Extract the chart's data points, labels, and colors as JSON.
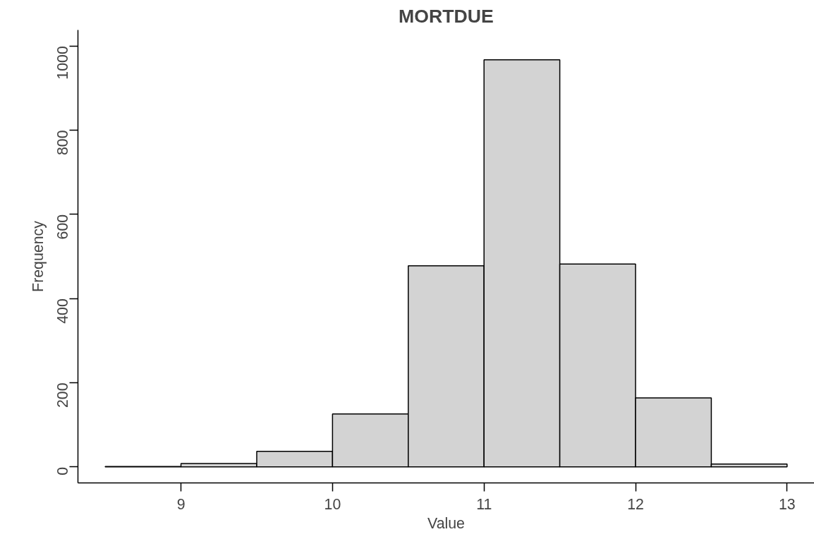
{
  "chart_data": {
    "type": "histogram",
    "title": "MORTDUE",
    "xlabel": "Value",
    "ylabel": "Frequency",
    "bins": [
      8.5,
      9,
      9.5,
      10,
      10.5,
      11,
      11.5,
      12,
      12.5,
      13
    ],
    "values": [
      1,
      8,
      37,
      126,
      478,
      967,
      482,
      164,
      7
    ],
    "color": "#d3d3d3",
    "xlim": [
      8.32,
      13.18
    ],
    "ylim": [
      -38,
      1038
    ],
    "xticks": [
      9,
      10,
      11,
      12,
      13
    ],
    "yticks": [
      0,
      200,
      400,
      600,
      800,
      1000
    ],
    "grid": false
  }
}
